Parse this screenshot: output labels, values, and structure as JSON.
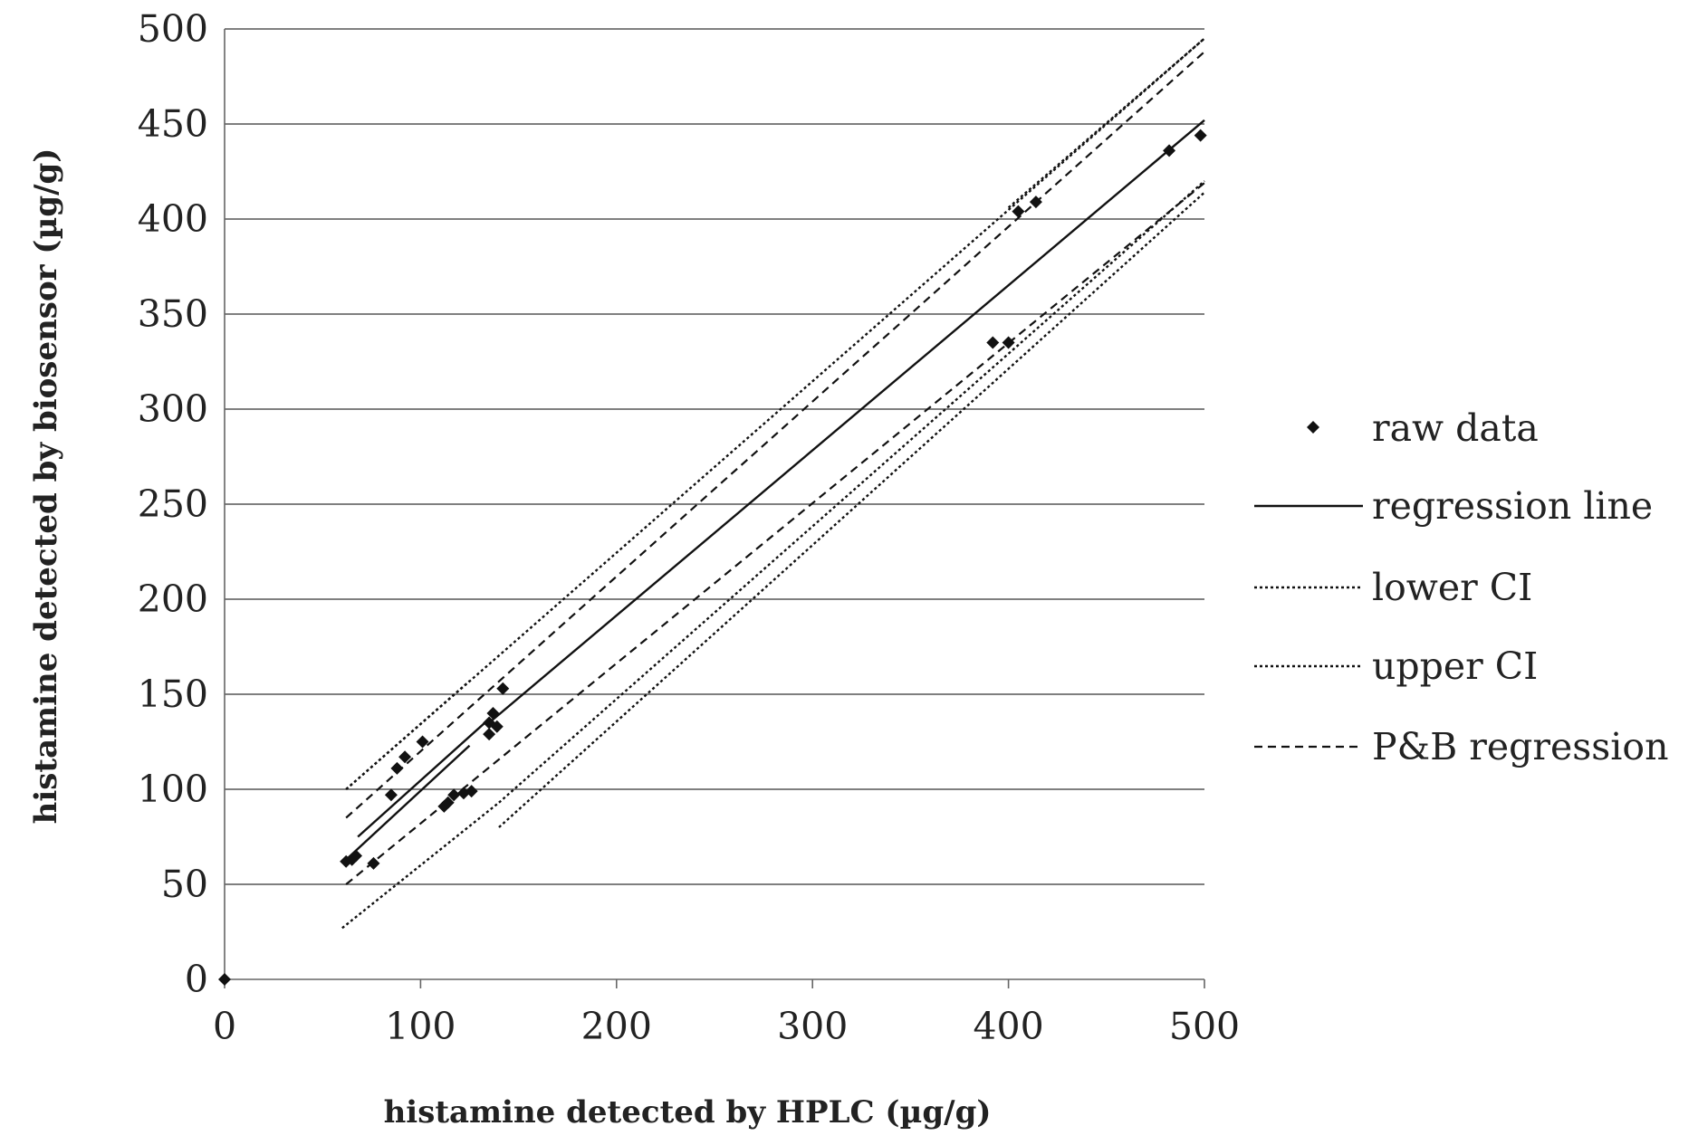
{
  "chart_data": {
    "type": "scatter",
    "title": "",
    "xlabel": "histamine  detected by HPLC  (µg/g)",
    "ylabel": "histamine  detected by biosensor (µg/g)",
    "xlim": [
      0,
      500
    ],
    "ylim": [
      0,
      500
    ],
    "x_ticks": [
      "0",
      "100",
      "200",
      "300",
      "400",
      "500"
    ],
    "y_ticks": [
      "0",
      "50",
      "100",
      "150",
      "200",
      "250",
      "300",
      "350",
      "400",
      "450",
      "500"
    ],
    "grid": "horizontal",
    "legend_position": "right",
    "series": [
      {
        "name": "raw data",
        "kind": "points",
        "points": [
          [
            0,
            0
          ],
          [
            62,
            62
          ],
          [
            65,
            63
          ],
          [
            67,
            65
          ],
          [
            76,
            61
          ],
          [
            85,
            97
          ],
          [
            88,
            111
          ],
          [
            92,
            117
          ],
          [
            101,
            125
          ],
          [
            112,
            91
          ],
          [
            114,
            93
          ],
          [
            117,
            97
          ],
          [
            122,
            98
          ],
          [
            126,
            99
          ],
          [
            135,
            129
          ],
          [
            135,
            135
          ],
          [
            137,
            140
          ],
          [
            139,
            133
          ],
          [
            142,
            153
          ],
          [
            392,
            335
          ],
          [
            400,
            335
          ],
          [
            405,
            404
          ],
          [
            414,
            409
          ],
          [
            482,
            436
          ],
          [
            498,
            444
          ]
        ]
      },
      {
        "name": "regression line",
        "kind": "line",
        "style": "solid",
        "segments": [
          [
            [
              62,
              63
            ],
            [
              125,
              123
            ]
          ],
          [
            [
              68,
              75
            ],
            [
              135,
              137
            ]
          ],
          [
            [
              135,
              135
            ],
            [
              500,
              452
            ]
          ]
        ]
      },
      {
        "name": "lower CI",
        "kind": "line",
        "style": "dotted",
        "segments": [
          [
            [
              62,
              100
            ],
            [
              125,
              157
            ]
          ],
          [
            [
              60,
              27
            ],
            [
              140,
              93
            ]
          ],
          [
            [
              140,
              93
            ],
            [
              500,
              420
            ]
          ],
          [
            [
              400,
              406
            ],
            [
              500,
              495
            ]
          ]
        ]
      },
      {
        "name": "upper CI",
        "kind": "line",
        "style": "dotted",
        "segments": [
          [
            [
              62,
              100
            ],
            [
              500,
              495
            ]
          ],
          [
            [
              140,
              80
            ],
            [
              500,
              414
            ]
          ]
        ]
      },
      {
        "name": "P&B regression",
        "kind": "line",
        "style": "dashed",
        "segments": [
          [
            [
              62,
              85
            ],
            [
              500,
              488
            ]
          ],
          [
            [
              62,
              50
            ],
            [
              500,
              419
            ]
          ]
        ]
      }
    ]
  }
}
